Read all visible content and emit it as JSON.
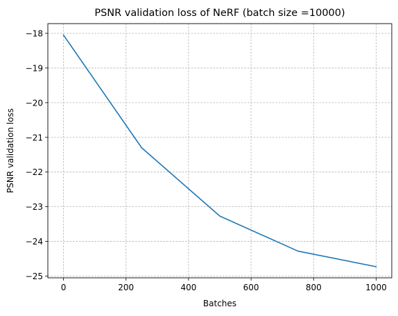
{
  "chart_data": {
    "type": "line",
    "title": "PSNR validation loss of NeRF (batch size =10000)",
    "xlabel": "Batches",
    "ylabel": "PSNR validation loss",
    "xlim": [
      -50,
      1050
    ],
    "ylim": [
      -25.05,
      -17.72
    ],
    "xticks": [
      0,
      200,
      400,
      600,
      800,
      1000
    ],
    "yticks": [
      -18,
      -19,
      -20,
      -21,
      -22,
      -23,
      -24,
      -25
    ],
    "xtick_labels": [
      "0",
      "200",
      "400",
      "600",
      "800",
      "1000"
    ],
    "ytick_labels": [
      "−18",
      "−19",
      "−20",
      "−21",
      "−22",
      "−23",
      "−24",
      "−25"
    ],
    "grid": true,
    "series": [
      {
        "color": "#1f77b4",
        "x": [
          0,
          250,
          500,
          750,
          1000
        ],
        "y": [
          -18.05,
          -21.3,
          -23.27,
          -24.28,
          -24.73
        ]
      }
    ]
  }
}
